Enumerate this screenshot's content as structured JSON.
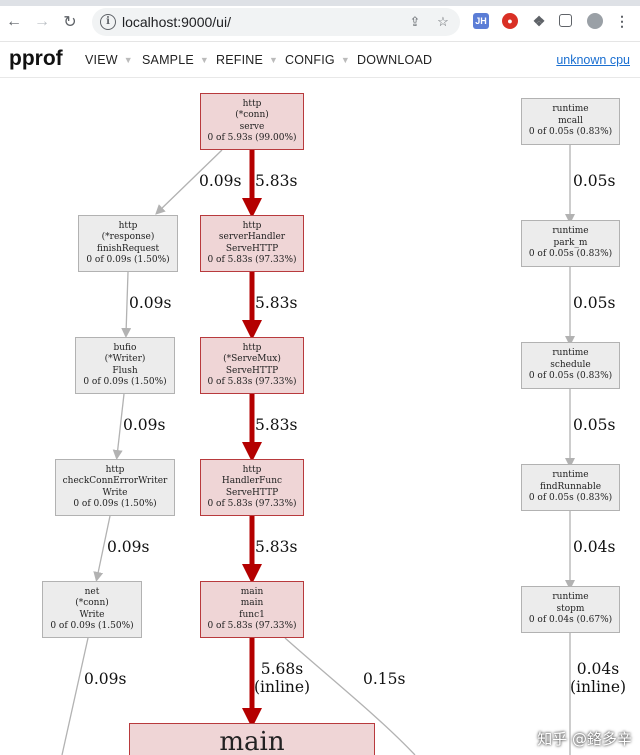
{
  "browser": {
    "url": "localhost:9000/ui/",
    "extension_jh": "JH"
  },
  "header": {
    "title": "pprof",
    "menu": [
      {
        "label": "VIEW"
      },
      {
        "label": "SAMPLE"
      },
      {
        "label": "REFINE"
      },
      {
        "label": "CONFIG"
      },
      {
        "label": "DOWNLOAD"
      }
    ],
    "link": "unknown cpu"
  },
  "graph": {
    "nodes": {
      "http_conn_serve": {
        "l1": "http",
        "l2": "(*conn)",
        "l3": "serve",
        "l4": "0 of 5.93s (99.00%)"
      },
      "serverHandler": {
        "l1": "http",
        "l2": "serverHandler",
        "l3": "ServeHTTP",
        "l4": "0 of 5.83s (97.33%)"
      },
      "servemux": {
        "l1": "http",
        "l2": "(*ServeMux)",
        "l3": "ServeHTTP",
        "l4": "0 of 5.83s (97.33%)"
      },
      "handlerfunc": {
        "l1": "http",
        "l2": "HandlerFunc",
        "l3": "ServeHTTP",
        "l4": "0 of 5.83s (97.33%)"
      },
      "main_func1": {
        "l1": "main",
        "l2": "main",
        "l3": "func1",
        "l4": "0 of 5.83s (97.33%)"
      },
      "main_big": {
        "l1": "main"
      },
      "finishRequest": {
        "l1": "http",
        "l2": "(*response)",
        "l3": "finishRequest",
        "l4": "0 of 0.09s (1.50%)"
      },
      "bufio_flush": {
        "l1": "bufio",
        "l2": "(*Writer)",
        "l3": "Flush",
        "l4": "0 of 0.09s (1.50%)"
      },
      "checkConn": {
        "l1": "http",
        "l2": "checkConnErrorWriter",
        "l3": "Write",
        "l4": "0 of 0.09s (1.50%)"
      },
      "net_conn_write": {
        "l1": "net",
        "l2": "(*conn)",
        "l3": "Write",
        "l4": "0 of 0.09s (1.50%)"
      },
      "mcall": {
        "l1": "runtime",
        "l2": "mcall",
        "l3": "0 of 0.05s (0.83%)"
      },
      "park_m": {
        "l1": "runtime",
        "l2": "park_m",
        "l3": "0 of 0.05s (0.83%)"
      },
      "schedule": {
        "l1": "runtime",
        "l2": "schedule",
        "l3": "0 of 0.05s (0.83%)"
      },
      "findRunnable": {
        "l1": "runtime",
        "l2": "findRunnable",
        "l3": "0 of 0.05s (0.83%)"
      },
      "stopm": {
        "l1": "runtime",
        "l2": "stopm",
        "l3": "0 of 0.04s (0.67%)"
      }
    },
    "edges": {
      "serve_to_finish": "0.09s",
      "serve_to_handler": "5.83s",
      "handler_to_mux": "5.83s",
      "mux_to_func": "5.83s",
      "func_to_main": "5.83s",
      "finish_to_bufio": "0.09s",
      "bufio_to_check": "0.09s",
      "check_to_net": "0.09s",
      "net_out": "0.09s",
      "main_inline_1": "5.68s",
      "main_inline_2": "(inline)",
      "main_other": "0.15s",
      "mcall_to_park": "0.05s",
      "park_to_schedule": "0.05s",
      "schedule_to_find": "0.05s",
      "find_to_stopm": "0.04s",
      "stopm_out_1": "0.04s",
      "stopm_out_2": "(inline)"
    }
  },
  "watermark": "知乎 @鉻多辛",
  "colors": {
    "hot_edge": "#b40000",
    "cold_edge": "#b2b2b2",
    "hot_node_fill": "#efd5d6",
    "link": "#1a6fd1"
  }
}
